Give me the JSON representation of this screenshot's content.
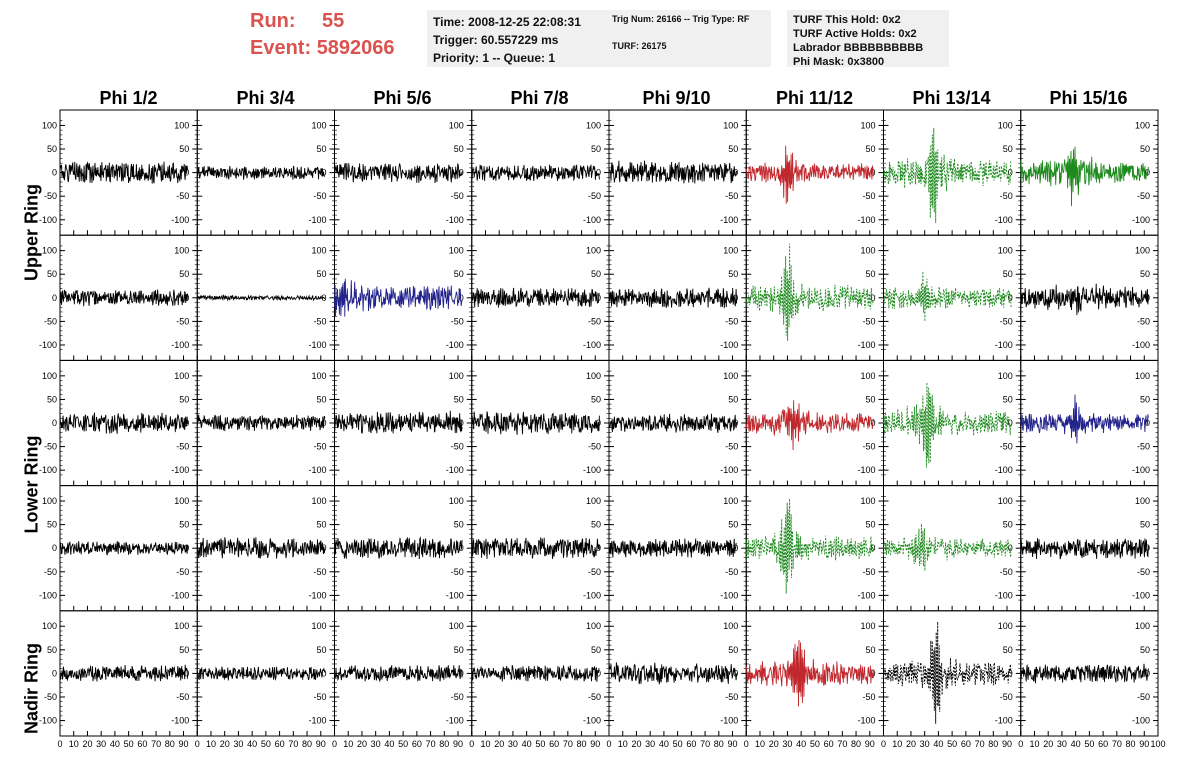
{
  "header": {
    "run_label": "Run:",
    "run_value": "55",
    "event_label": "Event:",
    "event_value": "5892066",
    "accent_color": "#d9534f"
  },
  "info_panel_1": {
    "line1": "Time: 2008-12-25 22:08:31",
    "line2": "Trigger: 60.557229 ms",
    "line3": "Priority: 1 -- Queue: 1"
  },
  "info_panel_2": {
    "line1": "Trig Num: 26166 -- Trig Type: RF",
    "line2": "TURF: 26175"
  },
  "info_panel_3": {
    "line1": "TURF This Hold: 0x2",
    "line2": "TURF Active Holds: 0x2",
    "line3": "Labrador BBBBBBBBBB",
    "line4": "Phi Mask: 0x3800"
  },
  "phi_headers": [
    "Phi 1/2",
    "Phi 3/4",
    "Phi 5/6",
    "Phi 7/8",
    "Phi 9/10",
    "Phi 11/12",
    "Phi 13/14",
    "Phi 15/16"
  ],
  "ring_labels": [
    "Upper Ring",
    "Lower Ring",
    "Nadir Ring"
  ],
  "chart_data": {
    "type": "line",
    "rows": 5,
    "cols": 8,
    "xlim": [
      0,
      100
    ],
    "ylim": [
      -120,
      120
    ],
    "x_ticks": [
      0,
      10,
      20,
      30,
      40,
      50,
      60,
      70,
      80,
      90,
      100
    ],
    "y_ticks": [
      100,
      50,
      0,
      -50,
      -100
    ],
    "colors": {
      "normal": "#000000",
      "red": "#c0282d",
      "green": "#1e8a1e",
      "blue": "#23238c"
    },
    "panels": [
      [
        {
          "color": "normal",
          "style": "solid",
          "amp": 18,
          "seed": 1
        },
        {
          "color": "normal",
          "style": "solid",
          "amp": 12,
          "seed": 2
        },
        {
          "color": "normal",
          "style": "solid",
          "amp": 18,
          "seed": 3
        },
        {
          "color": "normal",
          "style": "solid",
          "amp": 15,
          "seed": 4
        },
        {
          "color": "normal",
          "style": "solid",
          "amp": 20,
          "seed": 5
        },
        {
          "color": "red",
          "style": "solid",
          "amp": 16,
          "seed": 6,
          "pulse_x": 30,
          "pulse_amp": 55
        },
        {
          "color": "green",
          "style": "dashed",
          "amp": 22,
          "seed": 7,
          "pulse_x": 36,
          "pulse_amp": 95
        },
        {
          "color": "green",
          "style": "solid",
          "amp": 20,
          "seed": 8,
          "pulse_x": 38,
          "pulse_amp": 60
        }
      ],
      [
        {
          "color": "normal",
          "style": "solid",
          "amp": 14,
          "seed": 11
        },
        {
          "color": "normal",
          "style": "solid",
          "amp": 4,
          "seed": 12
        },
        {
          "color": "blue",
          "style": "solid",
          "amp": 22,
          "seed": 13,
          "pulse_x": 5,
          "pulse_amp": 30
        },
        {
          "color": "normal",
          "style": "solid",
          "amp": 17,
          "seed": 14
        },
        {
          "color": "normal",
          "style": "solid",
          "amp": 17,
          "seed": 15
        },
        {
          "color": "green",
          "style": "dashed",
          "amp": 22,
          "seed": 16,
          "pulse_x": 30,
          "pulse_amp": 90
        },
        {
          "color": "green",
          "style": "dashed",
          "amp": 18,
          "seed": 17,
          "pulse_x": 30,
          "pulse_amp": 40
        },
        {
          "color": "normal",
          "style": "solid",
          "amp": 18,
          "seed": 18,
          "pulse_x": 40,
          "pulse_amp": 28
        }
      ],
      [
        {
          "color": "normal",
          "style": "solid",
          "amp": 18,
          "seed": 21
        },
        {
          "color": "normal",
          "style": "solid",
          "amp": 14,
          "seed": 22
        },
        {
          "color": "normal",
          "style": "solid",
          "amp": 20,
          "seed": 23
        },
        {
          "color": "normal",
          "style": "solid",
          "amp": 20,
          "seed": 24
        },
        {
          "color": "normal",
          "style": "solid",
          "amp": 16,
          "seed": 25
        },
        {
          "color": "red",
          "style": "solid",
          "amp": 18,
          "seed": 26,
          "pulse_x": 35,
          "pulse_amp": 45
        },
        {
          "color": "green",
          "style": "dashed",
          "amp": 22,
          "seed": 27,
          "pulse_x": 32,
          "pulse_amp": 100
        },
        {
          "color": "blue",
          "style": "solid",
          "amp": 16,
          "seed": 28,
          "pulse_x": 40,
          "pulse_amp": 35
        }
      ],
      [
        {
          "color": "normal",
          "style": "solid",
          "amp": 12,
          "seed": 31
        },
        {
          "color": "normal",
          "style": "solid",
          "amp": 18,
          "seed": 32
        },
        {
          "color": "normal",
          "style": "solid",
          "amp": 18,
          "seed": 33
        },
        {
          "color": "normal",
          "style": "solid",
          "amp": 18,
          "seed": 34
        },
        {
          "color": "normal",
          "style": "solid",
          "amp": 16,
          "seed": 35
        },
        {
          "color": "green",
          "style": "dashed",
          "amp": 20,
          "seed": 36,
          "pulse_x": 30,
          "pulse_amp": 100
        },
        {
          "color": "green",
          "style": "dashed",
          "amp": 16,
          "seed": 37,
          "pulse_x": 28,
          "pulse_amp": 45
        },
        {
          "color": "normal",
          "style": "solid",
          "amp": 18,
          "seed": 38
        }
      ],
      [
        {
          "color": "normal",
          "style": "solid",
          "amp": 14,
          "seed": 41
        },
        {
          "color": "normal",
          "style": "solid",
          "amp": 12,
          "seed": 42
        },
        {
          "color": "normal",
          "style": "solid",
          "amp": 14,
          "seed": 43
        },
        {
          "color": "normal",
          "style": "solid",
          "amp": 14,
          "seed": 44
        },
        {
          "color": "normal",
          "style": "solid",
          "amp": 18,
          "seed": 45
        },
        {
          "color": "red",
          "style": "solid",
          "amp": 20,
          "seed": 46,
          "pulse_x": 38,
          "pulse_amp": 85
        },
        {
          "color": "normal",
          "style": "dashed",
          "amp": 20,
          "seed": 47,
          "pulse_x": 38,
          "pulse_amp": 100
        },
        {
          "color": "normal",
          "style": "solid",
          "amp": 16,
          "seed": 48
        }
      ]
    ]
  }
}
